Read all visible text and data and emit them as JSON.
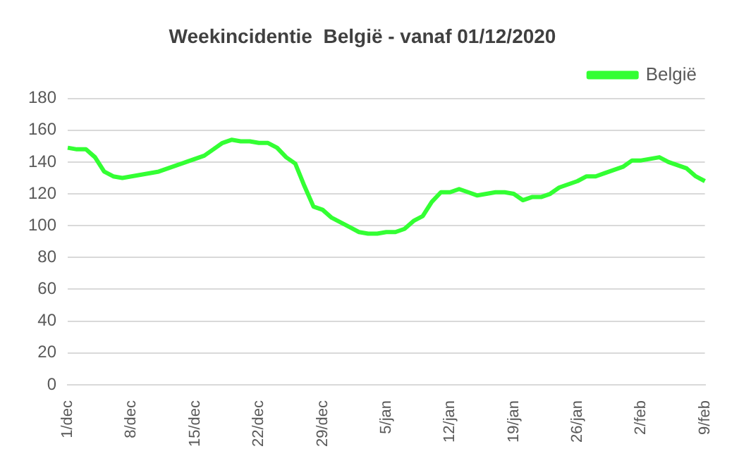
{
  "chart_data": {
    "type": "line",
    "title": "Weekincidentie  België - vanaf 01/12/2020",
    "categories": [
      "1/dec",
      null,
      null,
      null,
      null,
      null,
      null,
      "8/dec",
      null,
      null,
      null,
      null,
      null,
      null,
      "15/dec",
      null,
      null,
      null,
      null,
      null,
      null,
      "22/dec",
      null,
      null,
      null,
      null,
      null,
      null,
      "29/dec",
      null,
      null,
      null,
      null,
      null,
      null,
      "5/jan",
      null,
      null,
      null,
      null,
      null,
      null,
      "12/jan",
      null,
      null,
      null,
      null,
      null,
      null,
      "19/jan",
      null,
      null,
      null,
      null,
      null,
      null,
      "26/jan",
      null,
      null,
      null,
      null,
      null,
      null,
      "2/feb",
      null,
      null,
      null,
      null,
      null,
      null,
      "9/feb"
    ],
    "series": [
      {
        "name": "België",
        "color": "#33ff33",
        "values": [
          149,
          148,
          148,
          143,
          134,
          131,
          130,
          131,
          132,
          133,
          134,
          136,
          138,
          140,
          142,
          144,
          148,
          152,
          154,
          153,
          153,
          152,
          152,
          149,
          143,
          139,
          125,
          112,
          110,
          105,
          102,
          99,
          96,
          95,
          95,
          96,
          96,
          98,
          103,
          106,
          115,
          121,
          121,
          123,
          121,
          119,
          120,
          121,
          121,
          120,
          116,
          118,
          118,
          120,
          124,
          126,
          128,
          131,
          131,
          133,
          135,
          137,
          141,
          141,
          142,
          143,
          140,
          138,
          136,
          131,
          128
        ]
      }
    ],
    "ylim": [
      0,
      180
    ],
    "yticks": [
      0,
      20,
      40,
      60,
      80,
      100,
      120,
      140,
      160,
      180
    ],
    "grid": "y",
    "legend": "top right",
    "marker": "none",
    "line_style": "solid"
  }
}
